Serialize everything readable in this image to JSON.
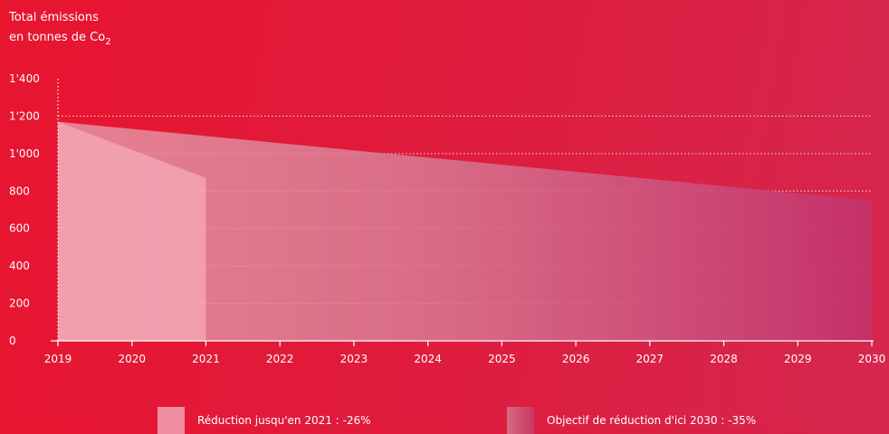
{
  "chart_data": {
    "type": "area",
    "title": "",
    "ylabel": {
      "line1": "Total émissions",
      "line2": "en tonnes de Co",
      "subscript": "2"
    },
    "xlabel": "",
    "x": [
      "2019",
      "2020",
      "2021",
      "2022",
      "2023",
      "2024",
      "2025",
      "2026",
      "2027",
      "2028",
      "2029",
      "2030"
    ],
    "ylim": [
      0,
      1400
    ],
    "yticks": [
      {
        "value": 0,
        "label": "0"
      },
      {
        "value": 200,
        "label": "200"
      },
      {
        "value": 400,
        "label": "400"
      },
      {
        "value": 600,
        "label": "600"
      },
      {
        "value": 800,
        "label": "800"
      },
      {
        "value": 1000,
        "label": "1'000"
      },
      {
        "value": 1200,
        "label": "1'200"
      },
      {
        "value": 1400,
        "label": "1'400"
      }
    ],
    "grid": true,
    "series": [
      {
        "name": "Objectif de réduction d'ici 2030 : -35%",
        "x": [
          2019,
          2030
        ],
        "values": [
          1170,
          750
        ],
        "color": "#c7375f"
      },
      {
        "name": "Réduction jusqu'en 2021 : -26%",
        "x": [
          2019,
          2021
        ],
        "values": [
          1170,
          870
        ],
        "color": "#f08ea0"
      }
    ],
    "legend": [
      {
        "label": "Réduction jusqu'en 2021 : -26%"
      },
      {
        "label": "Objectif de réduction d'ici 2030 : -35%"
      }
    ]
  }
}
